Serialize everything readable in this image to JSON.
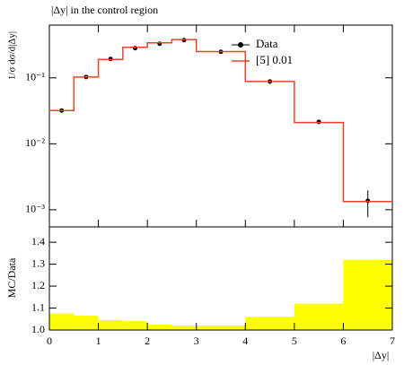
{
  "chart_data": [
    {
      "type": "step",
      "title": "|Δy| in the control region",
      "ylabel": "1/σ dσ/d|Δy|",
      "log_y": true,
      "ylim": [
        0.00055,
        0.63
      ],
      "yticks": [
        {
          "value": 0.1,
          "label": "10⁻¹"
        },
        {
          "value": 0.01,
          "label": "10⁻²"
        },
        {
          "value": 0.001,
          "label": "10⁻³"
        }
      ],
      "legend": "upper right",
      "series": [
        {
          "name": "Data",
          "type": "scatter",
          "color": "#000000",
          "x": [
            0.25,
            0.75,
            1.25,
            1.75,
            2.25,
            2.75,
            3.5,
            4.5,
            5.5,
            6.5
          ],
          "values": [
            0.032,
            0.103,
            0.193,
            0.281,
            0.329,
            0.373,
            0.248,
            0.088,
            0.0215,
            0.00137
          ],
          "errors": [
            0,
            0,
            0,
            0,
            0,
            0,
            0,
            0,
            0.0015,
            0.0006
          ]
        },
        {
          "name": "[5] 0.01",
          "type": "step",
          "color": "#e8432b",
          "bins": [
            0,
            0.5,
            1,
            1.5,
            2,
            2.5,
            3,
            4,
            5,
            6,
            7
          ],
          "values": [
            0.032,
            0.103,
            0.19,
            0.29,
            0.34,
            0.38,
            0.25,
            0.088,
            0.021,
            0.00133
          ]
        }
      ]
    },
    {
      "type": "histogram",
      "ylabel": "MC/Data",
      "xlabel": "|Δy|",
      "color": "#ffff00",
      "bins": [
        0,
        0.5,
        1,
        1.5,
        2,
        2.5,
        3,
        4,
        5,
        6,
        7
      ],
      "values": [
        1.075,
        1.065,
        1.045,
        1.04,
        1.025,
        1.02,
        1.02,
        1.06,
        1.12,
        1.32
      ],
      "xlim": [
        0,
        7
      ],
      "xticks": [
        0,
        1,
        2,
        3,
        4,
        5,
        6,
        7
      ],
      "ylim": [
        1.0,
        1.47
      ],
      "yticks": [
        {
          "value": 1.0,
          "label": "1.0"
        },
        {
          "value": 1.1,
          "label": "1.1"
        },
        {
          "value": 1.2,
          "label": "1.2"
        },
        {
          "value": 1.3,
          "label": "1.3"
        },
        {
          "value": 1.4,
          "label": "1.4"
        }
      ]
    }
  ]
}
